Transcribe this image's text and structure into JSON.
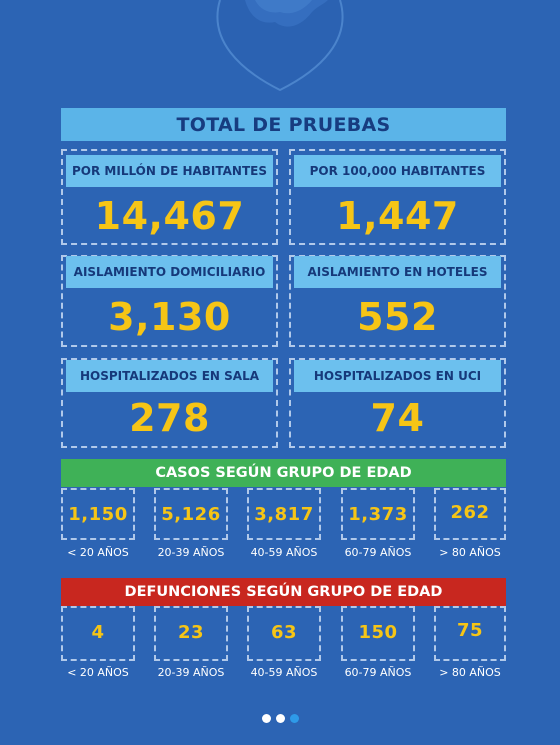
{
  "colors": {
    "background": "#2c64b4",
    "value_yellow": "#f6c516",
    "header_light_blue": "#6cc0ee",
    "cases_green": "#3fb157",
    "deaths_red": "#c8271f"
  },
  "logo": {
    "icon": "heart-shield-logo"
  },
  "totals": {
    "title": "TOTAL DE PRUEBAS",
    "per_million": {
      "label": "POR MILLÓN DE HABITANTES",
      "value": "14,467"
    },
    "per_100k": {
      "label": "POR 100,000 HABITANTES",
      "value": "1,447"
    }
  },
  "isolation": {
    "home": {
      "label": "AISLAMIENTO DOMICILIARIO",
      "value": "3,130"
    },
    "hotels": {
      "label": "AISLAMIENTO EN HOTELES",
      "value": "552"
    }
  },
  "hospital": {
    "ward": {
      "label": "HOSPITALIZADOS EN SALA",
      "value": "278"
    },
    "icu": {
      "label": "HOSPITALIZADOS EN UCI",
      "value": "74"
    }
  },
  "cases_by_age": {
    "title": "CASOS SEGÚN GRUPO DE EDAD",
    "groups": [
      {
        "label": "< 20 AÑOS",
        "value": "1,150"
      },
      {
        "label": "20-39 AÑOS",
        "value": "5,126"
      },
      {
        "label": "40-59 AÑOS",
        "value": "3,817"
      },
      {
        "label": "60-79 AÑOS",
        "value": "1,373"
      },
      {
        "label": "> 80 AÑOS",
        "value": "262"
      }
    ]
  },
  "deaths_by_age": {
    "title": "DEFUNCIONES SEGÚN GRUPO DE EDAD",
    "groups": [
      {
        "label": "< 20 AÑOS",
        "value": "4"
      },
      {
        "label": "20-39 AÑOS",
        "value": "23"
      },
      {
        "label": "40-59 AÑOS",
        "value": "63"
      },
      {
        "label": "60-79 AÑOS",
        "value": "150"
      },
      {
        "label": "> 80 AÑOS",
        "value": "75"
      }
    ]
  },
  "pagination": {
    "pages": 3,
    "current": 3
  }
}
